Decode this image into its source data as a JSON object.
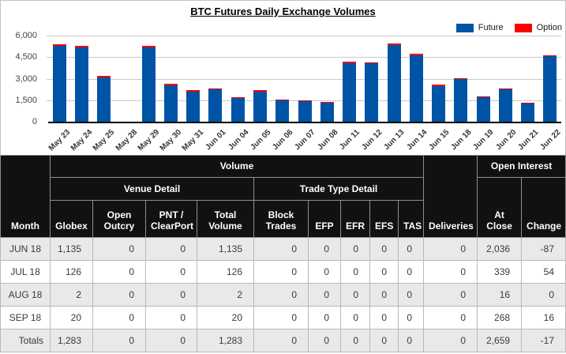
{
  "chart_data": {
    "type": "bar",
    "stacked": true,
    "title": "BTC Futures Daily Exchange Volumes",
    "xlabel": "",
    "ylabel": "",
    "categories": [
      "May 23",
      "May 24",
      "May 25",
      "May 28",
      "May 29",
      "May 30",
      "May 31",
      "Jun 01",
      "Jun 04",
      "Jun 05",
      "Jun 06",
      "Jun 07",
      "Jun 08",
      "Jun 11",
      "Jun 12",
      "Jun 13",
      "Jun 14",
      "Jun 15",
      "Jun 18",
      "Jun 19",
      "Jun 20",
      "Jun 21",
      "Jun 22"
    ],
    "series": [
      {
        "name": "Future",
        "color": "#0054a6",
        "values": [
          5300,
          5200,
          3100,
          0,
          5200,
          2550,
          2100,
          2250,
          1650,
          2100,
          1480,
          1430,
          1300,
          4100,
          4050,
          5350,
          4650,
          2500,
          2950,
          1700,
          2250,
          1250,
          4550
        ]
      },
      {
        "name": "Option",
        "color": "#ff0000",
        "values": [
          80,
          60,
          50,
          0,
          60,
          50,
          40,
          50,
          40,
          50,
          40,
          40,
          40,
          60,
          60,
          80,
          60,
          50,
          50,
          40,
          50,
          40,
          60
        ]
      }
    ],
    "ylim": [
      0,
      6000
    ],
    "y_ticks": [
      0,
      1500,
      3000,
      4500,
      6000
    ],
    "y_tick_labels": [
      "0",
      "1,500",
      "3,000",
      "4,500",
      "6,000"
    ],
    "grid": true,
    "legend_position": "top-right"
  },
  "table": {
    "header": {
      "month": "Month",
      "volume": "Volume",
      "venue_detail": "Venue Detail",
      "trade_type_detail": "Trade Type Detail",
      "deliveries": "Deliveries",
      "open_interest": "Open Interest",
      "at_close": "At Close",
      "change": "Change",
      "columns": [
        "Globex",
        "Open Outcry",
        "PNT / ClearPort",
        "Total Volume",
        "Block Trades",
        "EFP",
        "EFR",
        "EFS",
        "TAS"
      ]
    },
    "rows": [
      [
        "JUN 18",
        "1,135",
        "0",
        "0",
        "1,135",
        "0",
        "0",
        "0",
        "0",
        "0",
        "0",
        "2,036",
        "-87"
      ],
      [
        "JUL 18",
        "126",
        "0",
        "0",
        "126",
        "0",
        "0",
        "0",
        "0",
        "0",
        "0",
        "339",
        "54"
      ],
      [
        "AUG 18",
        "2",
        "0",
        "0",
        "2",
        "0",
        "0",
        "0",
        "0",
        "0",
        "0",
        "16",
        "0"
      ],
      [
        "SEP 18",
        "20",
        "0",
        "0",
        "20",
        "0",
        "0",
        "0",
        "0",
        "0",
        "0",
        "268",
        "16"
      ]
    ],
    "totals": [
      "Totals",
      "1,283",
      "0",
      "0",
      "1,283",
      "0",
      "0",
      "0",
      "0",
      "0",
      "0",
      "2,659",
      "-17"
    ]
  },
  "colors": {
    "future": "#0054a6",
    "option": "#ff0000",
    "header_bg": "#111111",
    "row_alt": "#e9e9e9",
    "gridline": "#c9c9c9"
  }
}
